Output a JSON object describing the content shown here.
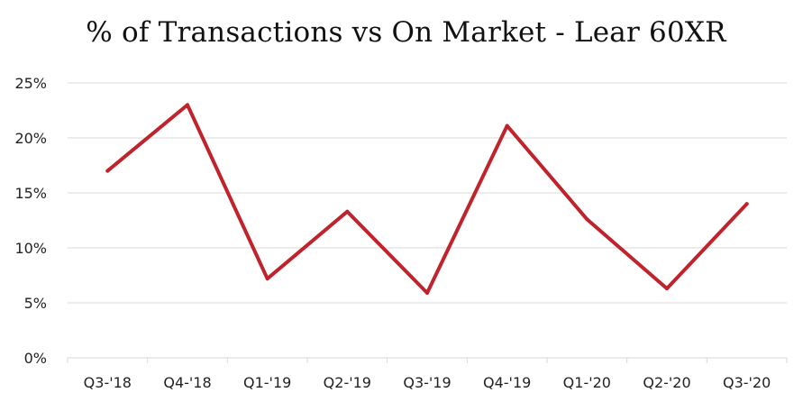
{
  "chart_data": {
    "type": "line",
    "title": "% of Transactions vs On Market - Lear 60XR",
    "xlabel": "",
    "ylabel": "",
    "categories": [
      "Q3-'18",
      "Q4-'18",
      "Q1-'19",
      "Q2-'19",
      "Q3-'19",
      "Q4-'19",
      "Q1-'20",
      "Q2-'20",
      "Q3-'20"
    ],
    "series": [
      {
        "values": [
          17.0,
          23.0,
          7.2,
          13.3,
          5.9,
          21.1,
          12.6,
          6.3,
          14.0
        ]
      }
    ],
    "ylim": [
      0,
      25
    ],
    "yticks": [
      0,
      5,
      10,
      15,
      20,
      25
    ],
    "ytick_labels": [
      "0%",
      "5%",
      "10%",
      "15%",
      "20%",
      "25%"
    ],
    "grid": "horizontal",
    "legend": "none",
    "line_color": "#c0232c",
    "grid_color": "#d9d9d9"
  }
}
